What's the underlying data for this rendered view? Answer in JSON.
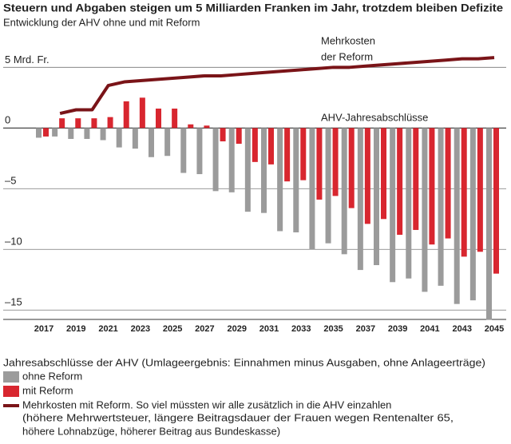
{
  "chart_data": {
    "type": "bar",
    "title": "Steuern und Abgaben steigen um 5 Milliarden Franken im Jahr, trotzdem bleiben Defizite",
    "subtitle": "Entwicklung der AHV ohne und mit Reform",
    "categories": [
      "2017",
      null,
      "2019",
      null,
      "2021",
      null,
      "2023",
      null,
      "2025",
      null,
      "2027",
      null,
      "2029",
      null,
      "2031",
      null,
      "2033",
      null,
      "2035",
      null,
      "2037",
      null,
      "2039",
      null,
      "2041",
      null,
      "2043",
      null,
      "2045"
    ],
    "series": [
      {
        "name": "ohne Reform",
        "color": "#9b9b9b",
        "values": [
          -0.8,
          -0.7,
          -0.9,
          -0.9,
          -1.0,
          -1.6,
          -1.7,
          -2.4,
          -2.3,
          -3.7,
          -3.8,
          -5.2,
          -5.3,
          -6.9,
          -7.0,
          -8.5,
          -8.6,
          -10.0,
          -9.5,
          -10.4,
          -11.7,
          -11.3,
          -12.7,
          -12.4,
          -13.5,
          -13.0,
          -14.5,
          -14.2,
          -15.8
        ]
      },
      {
        "name": "mit Reform",
        "color": "#d8262f",
        "values": [
          -0.7,
          0.8,
          0.8,
          0.8,
          0.9,
          2.2,
          2.5,
          1.6,
          1.6,
          0.3,
          0.2,
          -1.1,
          -1.3,
          -2.8,
          -3.0,
          -4.4,
          -4.3,
          -5.9,
          -5.6,
          -6.6,
          -7.9,
          -7.5,
          -8.8,
          -8.4,
          -9.6,
          -9.1,
          -10.6,
          -10.2,
          -12.0
        ]
      },
      {
        "name": "Mehrkosten mit Reform. So viel müssten wir alle zusätzlich in die AHV einzahlen",
        "color": "#7a1418",
        "type": "line",
        "values": [
          null,
          1.2,
          1.5,
          1.5,
          3.5,
          3.8,
          3.9,
          4.0,
          4.1,
          4.2,
          4.3,
          4.3,
          4.4,
          4.5,
          4.6,
          4.7,
          4.8,
          4.9,
          5.0,
          5.0,
          5.1,
          5.2,
          5.3,
          5.4,
          5.5,
          5.6,
          5.7,
          5.7,
          5.8
        ]
      }
    ],
    "ylim": [
      -16.3,
      6.6
    ],
    "yticks": [
      {
        "value": 5,
        "label": "5 Mrd. Fr."
      },
      0,
      {
        "value": -5,
        "label": "–5"
      },
      {
        "value": -10,
        "label": "–10"
      },
      {
        "value": -15,
        "label": "–15"
      }
    ],
    "grid": true,
    "annotations": [
      "Mehrkosten",
      "der Reform",
      "AHV-Jahresabschlüsse"
    ],
    "legend_title": "Jahresabschlüsse der AHV (Umlageergebnis: Einnahmen minus Ausgaben, ohne Anlageerträge)",
    "legend_notes": [
      "(höhere Mehrwertsteuer, längere Beitragsdauer der Frauen wegen Rentenalter 65,",
      "höhere Lohnabzüge, höherer Beitrag aus Bundeskasse)"
    ]
  }
}
